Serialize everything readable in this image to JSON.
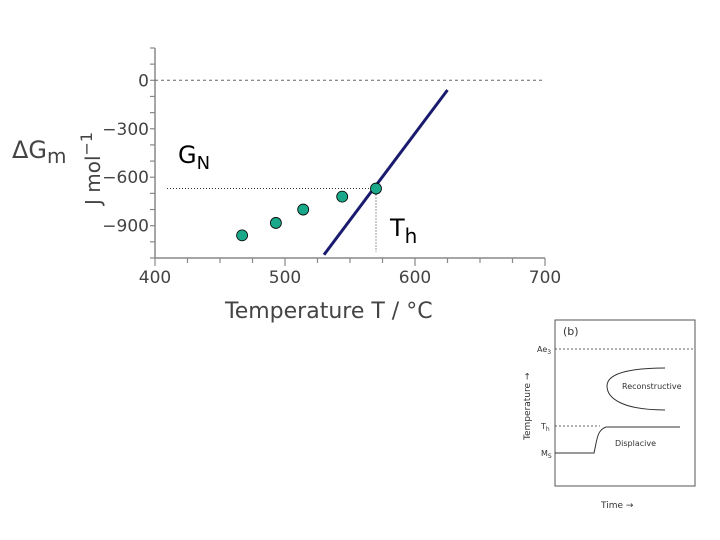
{
  "chart_data": [
    {
      "type": "scatter",
      "ylabel_main": "ΔG",
      "ylabel_sub": "m",
      "yunit": "J mol",
      "yunit_exp": "−1",
      "xlabel": "Temperature T  / °C",
      "xlim": [
        400,
        700
      ],
      "ylim": [
        -1100,
        200
      ],
      "xticks": [
        400,
        500,
        600,
        700
      ],
      "yticks": [
        0,
        -300,
        -600,
        -900
      ],
      "ytick_labels": [
        "0",
        "−300",
        "−600",
        "−900"
      ],
      "grid": false,
      "zero_line": true,
      "series": [
        {
          "points": [
            {
              "x": 467,
              "y": -960
            },
            {
              "x": 493,
              "y": -883
            },
            {
              "x": 514,
              "y": -800
            },
            {
              "x": 544,
              "y": -720
            },
            {
              "x": 570,
              "y": -670
            }
          ],
          "color": "#1aa88a"
        }
      ],
      "line": {
        "x": [
          530,
          625
        ],
        "y": [
          -1080,
          -60
        ],
        "color": "#1a1a6e"
      },
      "annotations": {
        "gn_main": "G",
        "gn_sub": "N",
        "th_main": "T",
        "th_sub": "h",
        "th_value": 570,
        "gn_value": -670
      }
    },
    {
      "type": "line",
      "panel_label": "(b)",
      "xlabel": "Time",
      "ylabel": "Temperature",
      "levels": [
        {
          "main": "Ae",
          "sub": "3"
        },
        {
          "main": "T",
          "sub": "h"
        },
        {
          "main": "M",
          "sub": "S"
        }
      ],
      "regions": [
        "Reconstructive",
        "Displacive"
      ]
    }
  ],
  "colors": {
    "marker_fill": "#1aa88a",
    "line": "#1a1a6e",
    "axis": "#888888"
  }
}
